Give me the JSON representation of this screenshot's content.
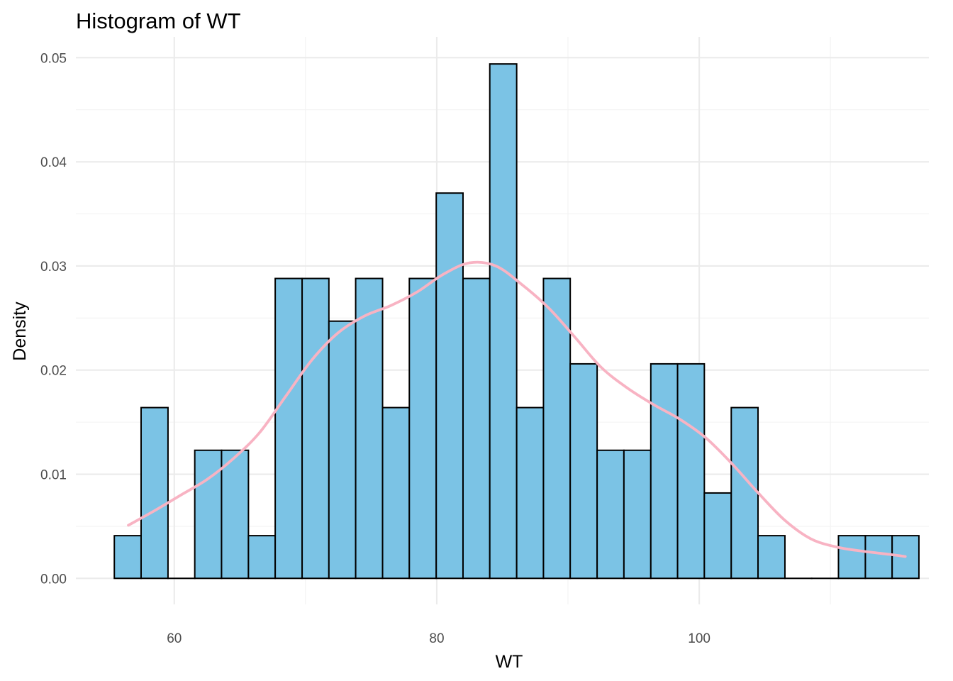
{
  "chart_data": {
    "type": "histogram",
    "title": "Histogram of WT",
    "xlabel": "WT",
    "ylabel": "Density",
    "xlim": [
      52.5,
      117.5
    ],
    "ylim": [
      -0.0025,
      0.052
    ],
    "x_ticks": [
      60,
      80,
      100
    ],
    "y_ticks": [
      0.0,
      0.01,
      0.02,
      0.03,
      0.04,
      0.05
    ],
    "x_tick_labels": [
      "60",
      "80",
      "100"
    ],
    "y_tick_labels": [
      "0.00",
      "0.01",
      "0.02",
      "0.03",
      "0.04",
      "0.05"
    ],
    "grid": true,
    "bin_width": 2.0435,
    "bin_edges": [
      55.43,
      57.47,
      59.52,
      61.56,
      63.6,
      65.65,
      67.69,
      69.74,
      71.78,
      73.82,
      75.87,
      77.91,
      79.96,
      82.0,
      84.04,
      86.09,
      88.13,
      90.17,
      92.22,
      94.26,
      96.31,
      98.35,
      100.39,
      102.44,
      104.48,
      106.53,
      108.57,
      110.61,
      112.66,
      114.7,
      116.74
    ],
    "values": [
      0.0041,
      0.0164,
      0.0,
      0.0123,
      0.0123,
      0.0041,
      0.0288,
      0.0288,
      0.0247,
      0.0288,
      0.0164,
      0.0288,
      0.037,
      0.0288,
      0.0494,
      0.0164,
      0.0288,
      0.0206,
      0.0123,
      0.0123,
      0.0206,
      0.0206,
      0.0082,
      0.0164,
      0.0041,
      0.0,
      0.0,
      0.0041,
      0.0041,
      0.0041
    ],
    "density_curve": {
      "x": [
        56.5,
        58.5,
        60.5,
        62.5,
        64.5,
        66.5,
        68.5,
        70.5,
        72.5,
        74.5,
        76.5,
        78.5,
        80.5,
        82.5,
        84.5,
        86.5,
        88.5,
        90.5,
        92.5,
        94.5,
        96.5,
        98.5,
        100.5,
        102.5,
        104.5,
        106.5,
        108.5,
        110.5,
        112.5,
        114.5,
        115.7
      ],
      "y": [
        0.0051,
        0.0065,
        0.008,
        0.0095,
        0.0115,
        0.014,
        0.0175,
        0.021,
        0.0236,
        0.0252,
        0.0262,
        0.0275,
        0.0292,
        0.0303,
        0.03,
        0.0282,
        0.026,
        0.0232,
        0.0203,
        0.0183,
        0.0167,
        0.0153,
        0.0135,
        0.011,
        0.0082,
        0.0056,
        0.0038,
        0.003,
        0.0026,
        0.0023,
        0.0021
      ]
    },
    "colors": {
      "bar_fill": "#7BC3E5",
      "bar_outline": "#000000",
      "density_line": "#F8B3C3",
      "grid": "#EBEBEB",
      "background": "#FFFFFF"
    }
  }
}
